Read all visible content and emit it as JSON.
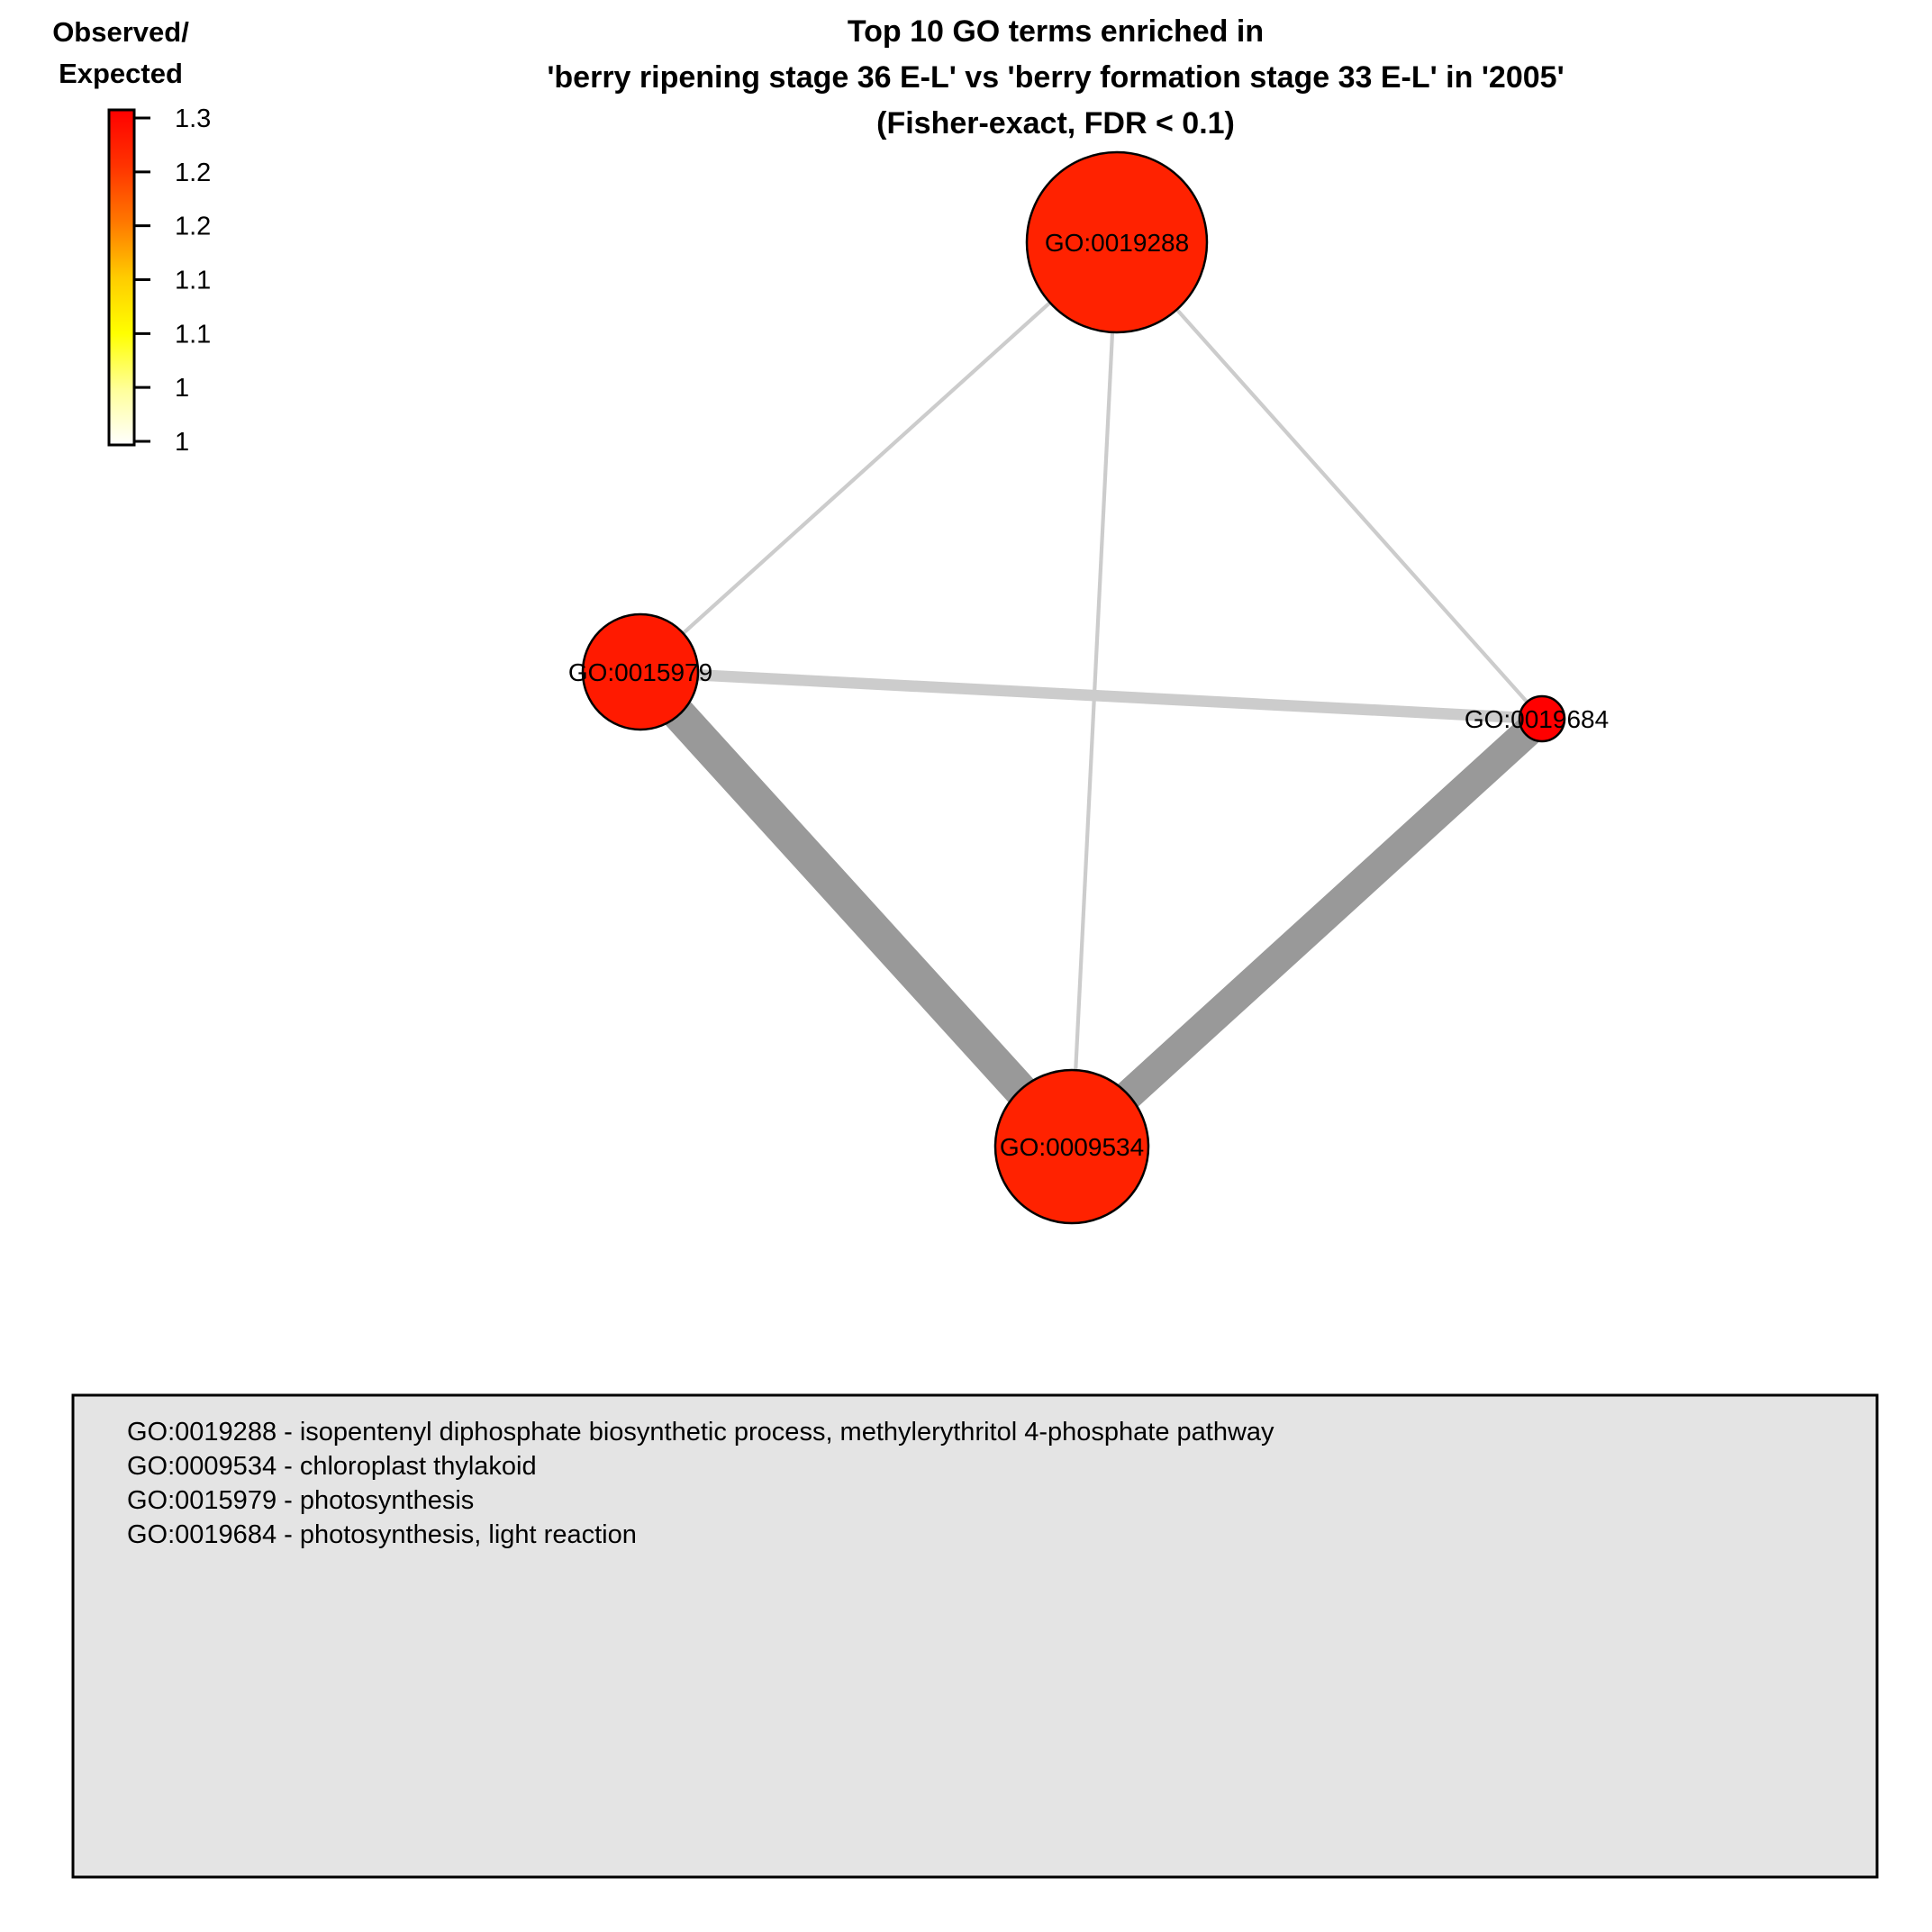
{
  "title": {
    "lines": [
      "Top 10 GO terms enriched in",
      "'berry ripening stage 36 E-L' vs 'berry formation stage 33 E-L' in '2005'",
      "(Fisher-exact, FDR < 0.1)"
    ]
  },
  "color_legend": {
    "title_lines": [
      "Observed/",
      "Expected"
    ],
    "tick_labels": [
      "1.3",
      "1.2",
      "1.2",
      "1.1",
      "1.1",
      "1",
      "1"
    ],
    "gradient_colors": [
      "#ff0000",
      "#ff3300",
      "#ff7700",
      "#ffcc00",
      "#ffff00",
      "#ffff99",
      "#ffffff"
    ]
  },
  "network": {
    "nodes": [
      {
        "id": "GO:0019288",
        "label": "GO:0019288",
        "observed_expected": 1.27,
        "fill": "#ff2200",
        "relative_size": 1.0
      },
      {
        "id": "GO:0015979",
        "label": "GO:0015979",
        "observed_expected": 1.28,
        "fill": "#ff1a00",
        "relative_size": 0.6
      },
      {
        "id": "GO:0019684",
        "label": "GO:0019684",
        "observed_expected": 1.3,
        "fill": "#ff0000",
        "relative_size": 0.2
      },
      {
        "id": "GO:0009534",
        "label": "GO:0009534",
        "observed_expected": 1.27,
        "fill": "#ff2200",
        "relative_size": 0.85
      }
    ],
    "edges": [
      {
        "source": "GO:0019288",
        "target": "GO:0015979",
        "weight": 1,
        "color": "#cccccc"
      },
      {
        "source": "GO:0019288",
        "target": "GO:0009534",
        "weight": 1,
        "color": "#cccccc"
      },
      {
        "source": "GO:0019288",
        "target": "GO:0019684",
        "weight": 1,
        "color": "#cccccc"
      },
      {
        "source": "GO:0015979",
        "target": "GO:0019684",
        "weight": 3,
        "color": "#cccccc"
      },
      {
        "source": "GO:0015979",
        "target": "GO:0009534",
        "weight": 9,
        "color": "#999999"
      },
      {
        "source": "GO:0019684",
        "target": "GO:0009534",
        "weight": 8,
        "color": "#999999"
      }
    ]
  },
  "term_descriptions": [
    "GO:0019288 - isopentenyl diphosphate biosynthetic process, methylerythritol 4-phosphate pathway",
    "GO:0009534 - chloroplast thylakoid",
    "GO:0015979 - photosynthesis",
    "GO:0019684 - photosynthesis, light reaction"
  ],
  "colors": {
    "background": "#ffffff",
    "description_box": "#e4e4e4"
  }
}
